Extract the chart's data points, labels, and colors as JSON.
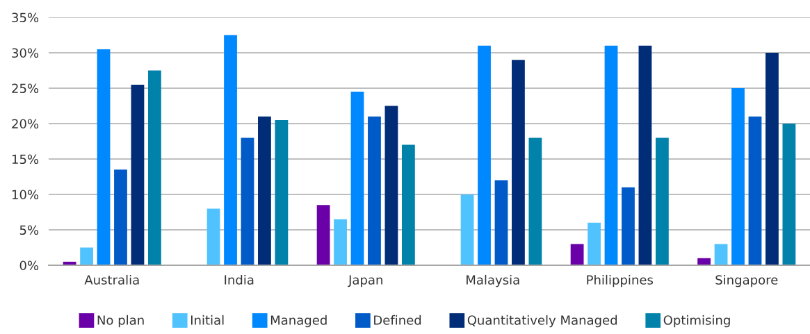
{
  "chart_data": {
    "type": "bar",
    "categories": [
      "Australia",
      "India",
      "Japan",
      "Malaysia",
      "Philippines",
      "Singapore"
    ],
    "series": [
      {
        "name": "No plan",
        "color": "#6a00a8",
        "values": [
          0.5,
          null,
          8.5,
          null,
          3,
          1
        ]
      },
      {
        "name": "Initial",
        "color": "#50c3ff",
        "values": [
          2.5,
          8,
          6.5,
          10,
          6,
          3
        ]
      },
      {
        "name": "Managed",
        "color": "#0088ff",
        "values": [
          30.5,
          32.5,
          24.5,
          31,
          31,
          25
        ]
      },
      {
        "name": "Defined",
        "color": "#005ac8",
        "values": [
          13.5,
          18,
          21,
          12,
          11,
          21
        ]
      },
      {
        "name": "Quantitatively Managed",
        "color": "#002c78",
        "values": [
          25.5,
          21,
          22.5,
          29,
          31,
          30
        ]
      },
      {
        "name": "Optimising",
        "color": "#0082aa",
        "values": [
          27.5,
          20.5,
          17,
          18,
          18,
          20
        ]
      }
    ],
    "ylim": [
      0,
      35
    ],
    "yticks": [
      {
        "value": 0,
        "label": "0%"
      },
      {
        "value": 5,
        "label": "5%"
      },
      {
        "value": 10,
        "label": "10%"
      },
      {
        "value": 15,
        "label": "15%"
      },
      {
        "value": 20,
        "label": "20%"
      },
      {
        "value": 25,
        "label": "25%"
      },
      {
        "value": 30,
        "label": "30%"
      },
      {
        "value": 35,
        "label": "35%"
      }
    ],
    "grid": "y",
    "legend": "bottom"
  }
}
